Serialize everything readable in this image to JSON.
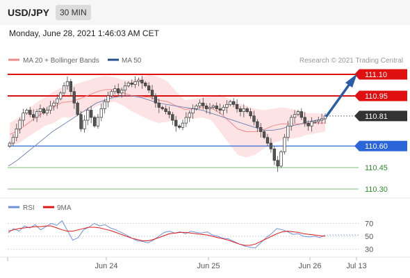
{
  "header": {
    "symbol": "USD/JPY",
    "timeframe": "30 MIN",
    "timestamp": "Monday, June 28, 2021 1:46:03 AM CET"
  },
  "legend": {
    "main": [
      {
        "label": "MA 20 + Bollinger Bands",
        "color": "#f08a8a"
      },
      {
        "label": "MA 50",
        "color": "#2a4f8f"
      }
    ],
    "rsi": [
      {
        "label": "RSI",
        "color": "#6f8fdc"
      },
      {
        "label": "9MA",
        "color": "#e01818"
      }
    ]
  },
  "credit": "Research © 2021 Trading Central",
  "colors": {
    "resistance": "#e01010",
    "support": "#2b66d9",
    "support_ext": "#7ec27e",
    "current": "#333333",
    "arrow": "#2a5da8",
    "candle_up": "#2e2e2e",
    "candle_down": "#555555"
  },
  "chart_data": [
    {
      "type": "candlestick",
      "title": "USD/JPY 30 MIN",
      "x_ticks": [
        "Jun 24",
        "Jun 25",
        "Jun 26",
        "Jul 13"
      ],
      "ylim": [
        110.25,
        111.16
      ],
      "levels": [
        {
          "label": "111.10",
          "value": 111.1,
          "kind": "resistance"
        },
        {
          "label": "110.95",
          "value": 110.95,
          "kind": "resistance"
        },
        {
          "label": "110.81",
          "value": 110.81,
          "kind": "current"
        },
        {
          "label": "110.60",
          "value": 110.6,
          "kind": "support"
        },
        {
          "label": "110.45",
          "value": 110.45,
          "kind": "support_ext"
        },
        {
          "label": "110.30",
          "value": 110.3,
          "kind": "support_ext"
        }
      ],
      "close": [
        110.62,
        110.66,
        110.72,
        110.78,
        110.83,
        110.85,
        110.82,
        110.8,
        110.84,
        110.86,
        110.83,
        110.85,
        110.88,
        110.9,
        110.93,
        110.97,
        111.02,
        111.05,
        110.98,
        110.9,
        110.82,
        110.72,
        110.78,
        110.85,
        110.8,
        110.74,
        110.8,
        110.86,
        110.91,
        110.95,
        110.98,
        111.0,
        110.97,
        110.99,
        111.02,
        111.04,
        111.03,
        111.05,
        111.06,
        111.04,
        111.02,
        110.99,
        110.95,
        110.9,
        110.87,
        110.86,
        110.84,
        110.82,
        110.78,
        110.74,
        110.73,
        110.76,
        110.8,
        110.83,
        110.86,
        110.88,
        110.9,
        110.88,
        110.86,
        110.87,
        110.88,
        110.86,
        110.85,
        110.87,
        110.89,
        110.91,
        110.89,
        110.86,
        110.84,
        110.86,
        110.84,
        110.81,
        110.77,
        110.73,
        110.7,
        110.66,
        110.62,
        110.58,
        110.5,
        110.46,
        110.56,
        110.66,
        110.74,
        110.8,
        110.82,
        110.84,
        110.8,
        110.76,
        110.74,
        110.77,
        110.77,
        110.78,
        110.79,
        110.81
      ],
      "ma50": [
        110.46,
        110.5,
        110.55,
        110.6,
        110.65,
        110.7,
        110.74,
        110.78,
        110.82,
        110.86,
        110.9,
        110.92,
        110.94,
        110.95,
        110.95,
        110.94,
        110.92,
        110.9,
        110.89,
        110.88,
        110.87,
        110.86,
        110.85,
        110.83,
        110.81,
        110.79,
        110.77,
        110.75,
        110.73,
        110.71,
        110.71,
        110.72,
        110.74,
        110.75,
        110.77,
        110.78,
        110.79
      ],
      "bollinger_upper": [
        110.76,
        110.8,
        110.85,
        110.9,
        110.94,
        110.98,
        111.01,
        111.02,
        111.04,
        111.06,
        111.08,
        111.09,
        111.08,
        111.06,
        111.06,
        111.08,
        111.1,
        111.08,
        111.05,
        110.98,
        110.92,
        110.93,
        110.94,
        110.95,
        110.96,
        110.93,
        110.9,
        110.88,
        110.86,
        110.85,
        110.86,
        110.87,
        110.86,
        110.85,
        110.83,
        110.83,
        110.82
      ],
      "bollinger_lower": [
        110.6,
        110.62,
        110.66,
        110.7,
        110.74,
        110.76,
        110.8,
        110.8,
        110.82,
        110.85,
        110.88,
        110.9,
        110.91,
        110.88,
        110.84,
        110.81,
        110.78,
        110.76,
        110.77,
        110.78,
        110.79,
        110.79,
        110.8,
        110.78,
        110.7,
        110.62,
        110.54,
        110.52,
        110.54,
        110.58,
        110.62,
        110.64,
        110.65,
        110.66,
        110.68,
        110.69,
        110.7
      ]
    },
    {
      "type": "line",
      "title": "RSI",
      "y_ticks": [
        "70",
        "50",
        "30"
      ],
      "ylim": [
        20,
        80
      ],
      "series": [
        {
          "name": "RSI",
          "values": [
            55,
            62,
            58,
            66,
            63,
            68,
            60,
            65,
            70,
            67,
            74,
            59,
            44,
            48,
            60,
            64,
            70,
            66,
            68,
            63,
            60,
            56,
            52,
            47,
            43,
            42,
            40,
            44,
            50,
            56,
            58,
            55,
            57,
            54,
            58,
            56,
            55,
            57,
            52,
            50,
            47,
            46,
            42,
            38,
            35,
            33,
            32,
            40,
            48,
            54,
            62,
            60,
            57,
            53,
            54,
            50,
            49,
            50,
            48,
            52
          ]
        },
        {
          "name": "9MA",
          "values": [
            58,
            60,
            62,
            63,
            64,
            65,
            65,
            66,
            66,
            63,
            60,
            58,
            58,
            60,
            62,
            64,
            64,
            63,
            61,
            59,
            56,
            53,
            50,
            47,
            45,
            43,
            43,
            45,
            48,
            51,
            54,
            55,
            56,
            56,
            55,
            54,
            53,
            52,
            50,
            48,
            46,
            44,
            41,
            38,
            36,
            36,
            38,
            42,
            46,
            50,
            54,
            57,
            58,
            57,
            56,
            54,
            53,
            52,
            51,
            50
          ]
        }
      ]
    }
  ]
}
